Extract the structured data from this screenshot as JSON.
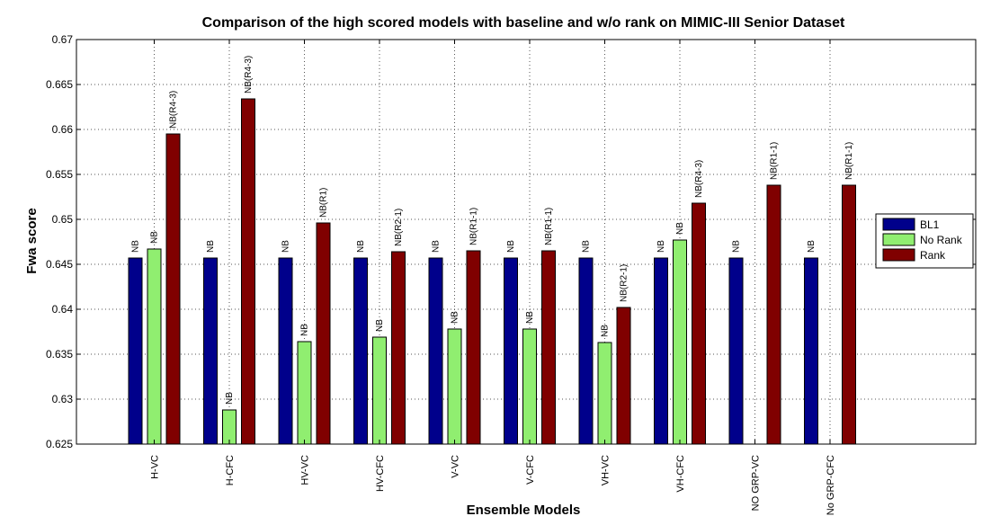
{
  "chart_data": {
    "type": "bar",
    "title": "Comparison of the high scored models with baseline and w/o rank on MIMIC-III Senior Dataset",
    "xlabel": "Ensemble Models",
    "ylabel": "Fwa score",
    "ylim": [
      0.625,
      0.67
    ],
    "yticks": [
      0.625,
      0.63,
      0.635,
      0.64,
      0.645,
      0.65,
      0.655,
      0.66,
      0.665,
      0.67
    ],
    "ytick_labels": [
      "0.625",
      "0.63",
      "0.635",
      "0.64",
      "0.645",
      "0.65",
      "0.655",
      "0.66",
      "0.665",
      "0.67"
    ],
    "grid": true,
    "legend_position": "right",
    "categories": [
      "H-VC",
      "H-CFC",
      "HV-VC",
      "HV-CFC",
      "V-VC",
      "V-CFC",
      "VH-VC",
      "VH-CFC",
      "NO GRP-VC",
      "No GRP-CFC"
    ],
    "series": [
      {
        "name": "BL1",
        "color": "#00008b",
        "values": [
          0.6457,
          0.6457,
          0.6457,
          0.6457,
          0.6457,
          0.6457,
          0.6457,
          0.6457,
          0.6457,
          0.6457
        ],
        "labels": [
          "NB",
          "NB",
          "NB",
          "NB",
          "NB",
          "NB",
          "NB",
          "NB",
          "NB",
          "NB"
        ]
      },
      {
        "name": "No Rank",
        "color": "#90ee70",
        "values": [
          0.6467,
          0.6288,
          0.6364,
          0.6369,
          0.6378,
          0.6378,
          0.6363,
          0.6477,
          null,
          null
        ],
        "labels": [
          "NB",
          "NB",
          "NB",
          "NB",
          "NB",
          "NB",
          "NB",
          "NB",
          null,
          null
        ]
      },
      {
        "name": "Rank",
        "color": "#800000",
        "values": [
          0.6595,
          0.6634,
          0.6496,
          0.6464,
          0.6465,
          0.6465,
          0.6402,
          0.6518,
          0.6538,
          0.6538
        ],
        "labels": [
          "NB(R4-3)",
          "NB(R4-3)",
          "NB(R1)",
          "NB(R2-1)",
          "NB(R1-1)",
          "NB(R1-1)",
          "NB(R2-1)",
          "NB(R4-3)",
          "NB(R1-1)",
          "NB(R1-1)"
        ]
      }
    ]
  }
}
